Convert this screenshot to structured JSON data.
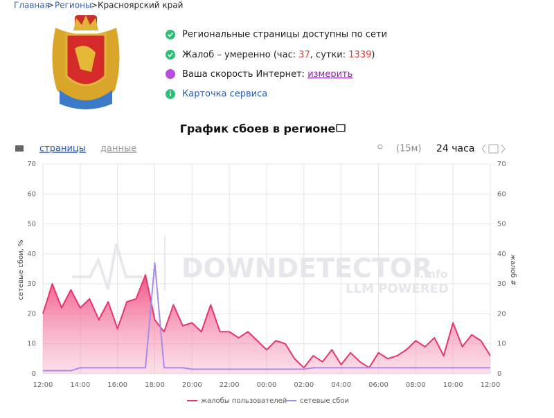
{
  "breadcrumb": {
    "items": [
      "Главная",
      "Регионы",
      "Красноярский край"
    ],
    "separator": ">"
  },
  "status": {
    "network": "Региональные страницы доступны по сети",
    "complaints": {
      "prefix": "Жалоб – умеренно (час: ",
      "hour": 37,
      "middle": ", сутки: ",
      "day": 1339,
      "suffix": ")"
    },
    "speed": {
      "text": "Ваша скорость Интернет: ",
      "link": "измерить"
    },
    "card": "Карточка сервиса"
  },
  "toolbar": {
    "tab_pages": "страницы",
    "tab_data": "данные",
    "interval": "(15м)",
    "period": "24 часа"
  },
  "watermark": {
    "brand": "DOWNDETECTOR",
    "domain": ".info",
    "tagline": "LLM POWERED"
  },
  "chart_data": {
    "type": "line",
    "title": "График сбоев в регионе",
    "y_label": "сетевые сбои, %",
    "y2_label": "жалоб #",
    "x": [
      "12:00",
      "12:30",
      "13:00",
      "13:30",
      "14:00",
      "14:30",
      "15:00",
      "15:30",
      "16:00",
      "16:30",
      "17:00",
      "17:30",
      "18:00",
      "18:30",
      "19:00",
      "19:30",
      "20:00",
      "20:30",
      "21:00",
      "21:30",
      "22:00",
      "22:30",
      "23:00",
      "23:30",
      "00:00",
      "00:30",
      "01:00",
      "01:30",
      "02:00",
      "02:30",
      "03:00",
      "03:30",
      "04:00",
      "04:30",
      "05:00",
      "05:30",
      "06:00",
      "06:30",
      "07:00",
      "07:30",
      "08:00",
      "08:30",
      "09:00",
      "09:30",
      "10:00",
      "10:30",
      "11:00",
      "11:30",
      "12:00 "
    ],
    "xticks": [
      "12:00",
      "14:00",
      "16:00",
      "18:00",
      "20:00",
      "22:00",
      "00:00",
      "02:00",
      "04:00",
      "06:00",
      "08:00",
      "10:00",
      "12:00 "
    ],
    "ylim": [
      0,
      70
    ],
    "yticks": [
      0,
      10,
      20,
      30,
      40,
      50,
      60,
      70
    ],
    "y2lim": [
      0,
      70
    ],
    "y2ticks": [
      0,
      10,
      20,
      30,
      40,
      50,
      60,
      70
    ],
    "grid": true,
    "legend": "bottom",
    "series": [
      {
        "name": "жалобы пользователей",
        "color": "#e8336d",
        "axis": "y2",
        "fill": true,
        "values": [
          20,
          30,
          22,
          28,
          22,
          25,
          18,
          24,
          15,
          24,
          25,
          33,
          18,
          14,
          23,
          16,
          17,
          14,
          23,
          14,
          14,
          12,
          14,
          11,
          8,
          11,
          10,
          5,
          2,
          6,
          4,
          8,
          3,
          7,
          4,
          2,
          7,
          5,
          6,
          8,
          11,
          9,
          12,
          6,
          17,
          9,
          13,
          11,
          6
        ]
      },
      {
        "name": "сетевые сбои",
        "color": "#a78be8",
        "fill": false,
        "values": [
          1,
          1,
          1,
          1,
          2,
          2,
          2,
          2,
          2,
          2,
          2,
          2,
          37,
          2,
          2,
          2,
          1.5,
          1.5,
          1.5,
          1.5,
          1.5,
          1.5,
          1.5,
          1.5,
          1.5,
          1.5,
          1.5,
          1.5,
          1.5,
          2,
          2,
          2,
          2,
          2,
          2,
          2,
          2,
          2,
          2,
          2,
          2,
          2,
          2,
          2,
          2,
          2,
          2,
          2,
          2
        ]
      }
    ]
  }
}
